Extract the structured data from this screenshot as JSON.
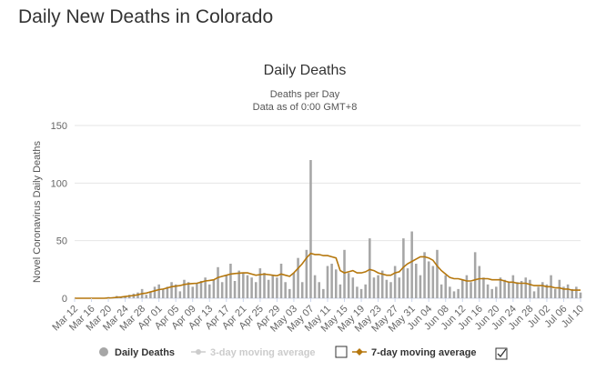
{
  "page": {
    "title": "Daily New Deaths in Colorado"
  },
  "chart_data": {
    "type": "bar",
    "title": "Daily Deaths",
    "subtitle_line1": "Deaths per Day",
    "subtitle_line2": "Data as of 0:00 GMT+8",
    "ylabel": "Novel Coronavirus Daily Deaths",
    "ylim": [
      0,
      150
    ],
    "yticks": [
      0,
      50,
      100,
      150
    ],
    "start_date": "2020-03-12",
    "end_date": "2020-07-10",
    "xtick_labels": [
      "Mar 12",
      "Mar 16",
      "Mar 20",
      "Mar 24",
      "Mar 28",
      "Apr 01",
      "Apr 05",
      "Apr 09",
      "Apr 13",
      "Apr 17",
      "Apr 21",
      "Apr 25",
      "Apr 29",
      "May 03",
      "May 07",
      "May 11",
      "May 15",
      "May 19",
      "May 23",
      "May 27",
      "May 31",
      "Jun 04",
      "Jun 08",
      "Jun 12",
      "Jun 16",
      "Jun 20",
      "Jun 24",
      "Jun 28",
      "Jul 02",
      "Jul 06",
      "Jul 10"
    ],
    "series": [
      {
        "name": "Daily Deaths",
        "color": "#a6a6a6",
        "values": [
          0,
          0,
          0,
          0,
          0,
          0,
          0,
          0,
          1,
          1,
          2,
          1,
          2,
          3,
          4,
          5,
          8,
          3,
          6,
          10,
          12,
          8,
          10,
          14,
          12,
          6,
          16,
          14,
          10,
          13,
          15,
          18,
          12,
          16,
          27,
          14,
          20,
          30,
          15,
          24,
          22,
          20,
          18,
          14,
          26,
          22,
          16,
          20,
          18,
          30,
          14,
          8,
          22,
          35,
          14,
          42,
          120,
          20,
          14,
          8,
          28,
          30,
          25,
          12,
          42,
          22,
          18,
          10,
          8,
          12,
          52,
          18,
          20,
          24,
          16,
          14,
          28,
          18,
          52,
          26,
          58,
          30,
          20,
          40,
          32,
          28,
          42,
          12,
          20,
          10,
          6,
          8,
          16,
          20,
          14,
          40,
          28,
          18,
          12,
          8,
          10,
          18,
          16,
          14,
          20,
          14,
          15,
          18,
          16,
          6,
          10,
          14,
          12,
          20,
          8,
          16,
          10,
          12,
          8,
          10,
          5,
          8,
          6,
          10,
          12,
          15,
          5
        ]
      },
      {
        "name": "7-day moving average",
        "color": "#b5770d",
        "values": [
          0,
          0,
          0,
          0,
          0,
          0,
          0,
          0,
          0.2,
          0.4,
          0.8,
          1,
          1.5,
          2,
          2.4,
          3,
          4,
          4.5,
          5.5,
          6.5,
          7.5,
          8,
          9,
          10,
          10.5,
          11,
          12,
          12.5,
          12.8,
          13,
          14,
          15,
          15.5,
          16,
          18,
          19,
          20,
          21,
          21.5,
          21.8,
          22,
          22,
          21,
          20,
          20.5,
          21,
          20.5,
          20,
          19.5,
          21,
          20,
          19,
          22,
          26,
          30,
          35,
          39,
          38,
          38,
          37,
          37,
          36,
          35,
          24,
          22,
          23,
          24,
          22,
          22,
          23,
          25,
          24,
          22,
          21,
          20,
          20,
          22,
          23,
          27,
          30,
          32,
          34,
          36,
          36,
          35,
          33,
          28,
          24,
          21,
          18,
          17,
          17,
          16,
          15,
          15,
          16,
          17,
          17,
          17,
          16,
          16,
          16,
          15,
          14,
          14,
          13,
          13,
          13,
          12,
          11,
          11,
          11,
          10,
          10,
          9,
          9,
          8,
          8,
          7,
          7,
          7,
          6,
          6,
          5
        ]
      }
    ],
    "legend": [
      {
        "label": "Daily Deaths",
        "color": "#a6a6a6",
        "enabled": true,
        "checkbox": false
      },
      {
        "label": "3-day moving average",
        "color": "#cccccc",
        "enabled": false,
        "checkbox": true,
        "checked": false
      },
      {
        "label": "7-day moving average",
        "color": "#b5770d",
        "enabled": true,
        "checkbox": true,
        "checked": true
      }
    ],
    "legend_position": "bottom",
    "grid": true
  }
}
